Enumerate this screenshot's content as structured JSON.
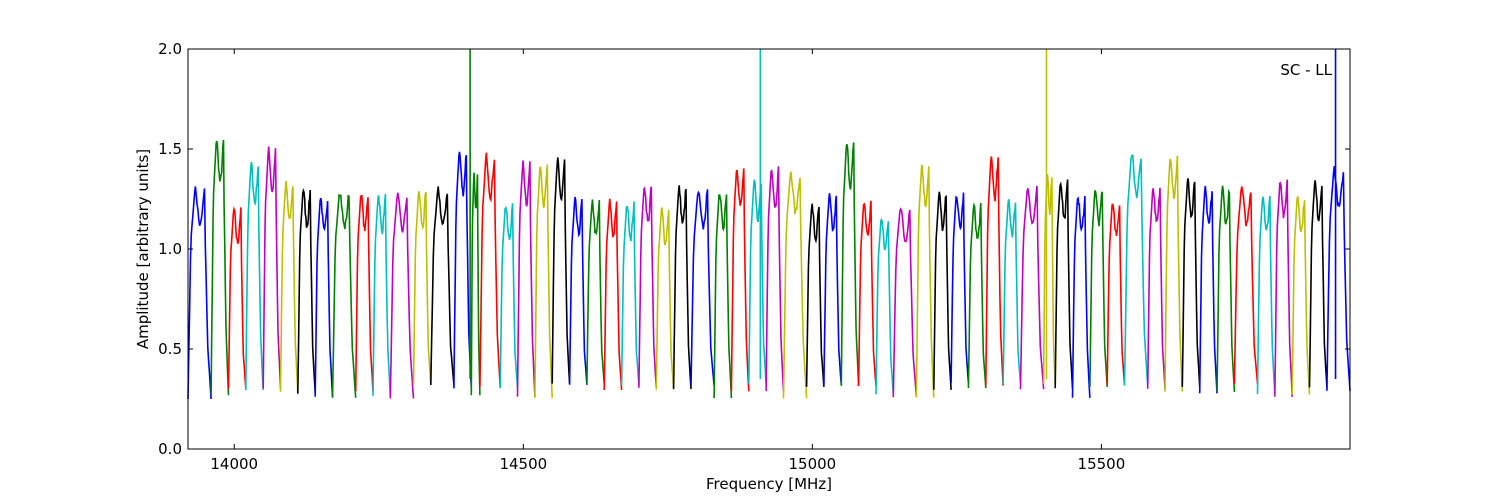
{
  "chart_data": {
    "type": "line",
    "title": "",
    "xlabel": "Frequency [MHz]",
    "ylabel": "Amplitude [arbitrary units]",
    "annotation": "SC - LL",
    "xlim": [
      13920,
      15930
    ],
    "ylim": [
      0.0,
      2.0
    ],
    "x_ticks": [
      {
        "value": 14000,
        "label": "14000"
      },
      {
        "value": 14500,
        "label": "14500"
      },
      {
        "value": 15000,
        "label": "15000"
      },
      {
        "value": 15500,
        "label": "15500"
      }
    ],
    "y_ticks": [
      {
        "value": 0.0,
        "label": "0.0"
      },
      {
        "value": 0.5,
        "label": "0.5"
      },
      {
        "value": 1.0,
        "label": "1.0"
      },
      {
        "value": 1.5,
        "label": "1.5"
      },
      {
        "value": 2.0,
        "label": "2.0"
      }
    ],
    "grid": false,
    "legend": "none",
    "color_cycle": [
      "#0000ff",
      "#008000",
      "#ff0000",
      "#00bfbf",
      "#bf00bf",
      "#bfbf00",
      "#000000"
    ],
    "segments": [
      {
        "start": 13920,
        "end": 13960,
        "peak": 1.3,
        "color": "#0000ff"
      },
      {
        "start": 13960,
        "end": 13990,
        "peak": 1.55,
        "color": "#008000"
      },
      {
        "start": 13990,
        "end": 14020,
        "peak": 1.2,
        "color": "#ff0000"
      },
      {
        "start": 14020,
        "end": 14050,
        "peak": 1.43,
        "color": "#00bfbf"
      },
      {
        "start": 14050,
        "end": 14080,
        "peak": 1.5,
        "color": "#bf00bf"
      },
      {
        "start": 14080,
        "end": 14110,
        "peak": 1.33,
        "color": "#bfbf00"
      },
      {
        "start": 14110,
        "end": 14140,
        "peak": 1.3,
        "color": "#000000"
      },
      {
        "start": 14140,
        "end": 14170,
        "peak": 1.26,
        "color": "#0000ff"
      },
      {
        "start": 14170,
        "end": 14210,
        "peak": 1.29,
        "color": "#008000"
      },
      {
        "start": 14210,
        "end": 14240,
        "peak": 1.28,
        "color": "#ff0000"
      },
      {
        "start": 14240,
        "end": 14270,
        "peak": 1.27,
        "color": "#00bfbf"
      },
      {
        "start": 14270,
        "end": 14310,
        "peak": 1.27,
        "color": "#bf00bf"
      },
      {
        "start": 14310,
        "end": 14340,
        "peak": 1.29,
        "color": "#bfbf00"
      },
      {
        "start": 14340,
        "end": 14380,
        "peak": 1.3,
        "color": "#000000"
      },
      {
        "start": 14380,
        "end": 14410,
        "peak": 1.49,
        "color": "#0000ff"
      },
      {
        "start": 14410,
        "end": 14425,
        "peak": 1.38,
        "color": "#008000"
      },
      {
        "start": 14425,
        "end": 14460,
        "peak": 1.47,
        "color": "#ff0000"
      },
      {
        "start": 14460,
        "end": 14490,
        "peak": 1.22,
        "color": "#00bfbf"
      },
      {
        "start": 14490,
        "end": 14520,
        "peak": 1.43,
        "color": "#bf00bf"
      },
      {
        "start": 14520,
        "end": 14550,
        "peak": 1.42,
        "color": "#bfbf00"
      },
      {
        "start": 14550,
        "end": 14580,
        "peak": 1.45,
        "color": "#000000"
      },
      {
        "start": 14580,
        "end": 14610,
        "peak": 1.25,
        "color": "#0000ff"
      },
      {
        "start": 14610,
        "end": 14640,
        "peak": 1.24,
        "color": "#008000"
      },
      {
        "start": 14640,
        "end": 14670,
        "peak": 1.24,
        "color": "#ff0000"
      },
      {
        "start": 14670,
        "end": 14700,
        "peak": 1.23,
        "color": "#00bfbf"
      },
      {
        "start": 14700,
        "end": 14730,
        "peak": 1.32,
        "color": "#bf00bf"
      },
      {
        "start": 14730,
        "end": 14760,
        "peak": 1.2,
        "color": "#bfbf00"
      },
      {
        "start": 14760,
        "end": 14790,
        "peak": 1.31,
        "color": "#000000"
      },
      {
        "start": 14790,
        "end": 14830,
        "peak": 1.29,
        "color": "#0000ff"
      },
      {
        "start": 14830,
        "end": 14860,
        "peak": 1.29,
        "color": "#008000"
      },
      {
        "start": 14860,
        "end": 14890,
        "peak": 1.41,
        "color": "#ff0000"
      },
      {
        "start": 14890,
        "end": 14920,
        "peak": 1.34,
        "color": "#00bfbf"
      },
      {
        "start": 14920,
        "end": 14950,
        "peak": 1.41,
        "color": "#bf00bf"
      },
      {
        "start": 14950,
        "end": 14990,
        "peak": 1.38,
        "color": "#bfbf00"
      },
      {
        "start": 14990,
        "end": 15020,
        "peak": 1.22,
        "color": "#000000"
      },
      {
        "start": 15020,
        "end": 15050,
        "peak": 1.27,
        "color": "#0000ff"
      },
      {
        "start": 15050,
        "end": 15080,
        "peak": 1.53,
        "color": "#008000"
      },
      {
        "start": 15080,
        "end": 15110,
        "peak": 1.24,
        "color": "#ff0000"
      },
      {
        "start": 15110,
        "end": 15140,
        "peak": 1.16,
        "color": "#00bfbf"
      },
      {
        "start": 15140,
        "end": 15180,
        "peak": 1.21,
        "color": "#bf00bf"
      },
      {
        "start": 15180,
        "end": 15210,
        "peak": 1.42,
        "color": "#bfbf00"
      },
      {
        "start": 15210,
        "end": 15240,
        "peak": 1.28,
        "color": "#000000"
      },
      {
        "start": 15240,
        "end": 15270,
        "peak": 1.28,
        "color": "#0000ff"
      },
      {
        "start": 15270,
        "end": 15300,
        "peak": 1.22,
        "color": "#008000"
      },
      {
        "start": 15300,
        "end": 15330,
        "peak": 1.46,
        "color": "#ff0000"
      },
      {
        "start": 15330,
        "end": 15360,
        "peak": 1.25,
        "color": "#00bfbf"
      },
      {
        "start": 15360,
        "end": 15400,
        "peak": 1.31,
        "color": "#bf00bf"
      },
      {
        "start": 15400,
        "end": 15420,
        "peak": 1.38,
        "color": "#bfbf00"
      },
      {
        "start": 15420,
        "end": 15450,
        "peak": 1.34,
        "color": "#000000"
      },
      {
        "start": 15450,
        "end": 15480,
        "peak": 1.27,
        "color": "#0000ff"
      },
      {
        "start": 15480,
        "end": 15510,
        "peak": 1.31,
        "color": "#008000"
      },
      {
        "start": 15510,
        "end": 15540,
        "peak": 1.24,
        "color": "#ff0000"
      },
      {
        "start": 15540,
        "end": 15580,
        "peak": 1.48,
        "color": "#00bfbf"
      },
      {
        "start": 15580,
        "end": 15610,
        "peak": 1.31,
        "color": "#bf00bf"
      },
      {
        "start": 15610,
        "end": 15640,
        "peak": 1.47,
        "color": "#bfbf00"
      },
      {
        "start": 15640,
        "end": 15670,
        "peak": 1.35,
        "color": "#000000"
      },
      {
        "start": 15670,
        "end": 15700,
        "peak": 1.3,
        "color": "#0000ff"
      },
      {
        "start": 15700,
        "end": 15730,
        "peak": 1.31,
        "color": "#008000"
      },
      {
        "start": 15730,
        "end": 15770,
        "peak": 1.31,
        "color": "#ff0000"
      },
      {
        "start": 15770,
        "end": 15800,
        "peak": 1.27,
        "color": "#00bfbf"
      },
      {
        "start": 15800,
        "end": 15830,
        "peak": 1.35,
        "color": "#bf00bf"
      },
      {
        "start": 15830,
        "end": 15860,
        "peak": 1.27,
        "color": "#bfbf00"
      },
      {
        "start": 15860,
        "end": 15890,
        "peak": 1.34,
        "color": "#000000"
      },
      {
        "start": 15890,
        "end": 15930,
        "peak": 1.4,
        "color": "#0000ff"
      }
    ],
    "spikes": [
      {
        "x": 14408,
        "y": 2.0,
        "color": "#008000"
      },
      {
        "x": 14910,
        "y": 2.0,
        "color": "#00bfbf"
      },
      {
        "x": 15405,
        "y": 2.0,
        "color": "#bfbf00"
      },
      {
        "x": 15905,
        "y": 2.0,
        "color": "#0000ff"
      }
    ]
  }
}
